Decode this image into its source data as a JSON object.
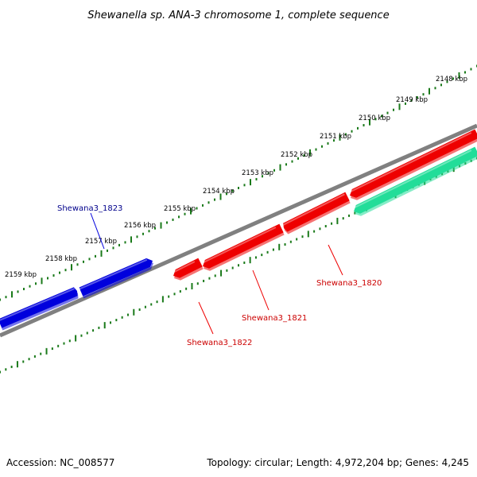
{
  "title": "Shewanella sp. ANA-3 chromosome 1, complete sequence",
  "footer": {
    "accession": "Accession: NC_008577",
    "summary": "Topology: circular; Length: 4,972,204 bp; Genes: 4,245"
  },
  "ruler": {
    "labels": [
      "2148 kbp",
      "2149 kbp",
      "2150 kbp",
      "2151 kbp",
      "2152 kbp",
      "2153 kbp",
      "2154 kbp",
      "2155 kbp",
      "2156 kbp",
      "2157 kbp",
      "2158 kbp",
      "2159 kbp"
    ]
  },
  "genes": [
    {
      "name": "Shewana3_1823",
      "color": "#0000dd",
      "label_color": "#00008b",
      "strand": "forward"
    },
    {
      "name": "Shewana3_1822",
      "color": "#ee0000",
      "label_color": "#cc0000",
      "strand": "reverse"
    },
    {
      "name": "Shewana3_1821",
      "color": "#ee0000",
      "label_color": "#cc0000",
      "strand": "reverse"
    },
    {
      "name": "Shewana3_1820",
      "color": "#ee0000",
      "label_color": "#cc0000",
      "strand": "reverse"
    },
    {
      "name": "unlabeled",
      "color": "#22dd99",
      "label_color": "",
      "strand": "reverse"
    }
  ],
  "colors": {
    "backbone": "#808080",
    "ticks": "#1a7a1a"
  }
}
